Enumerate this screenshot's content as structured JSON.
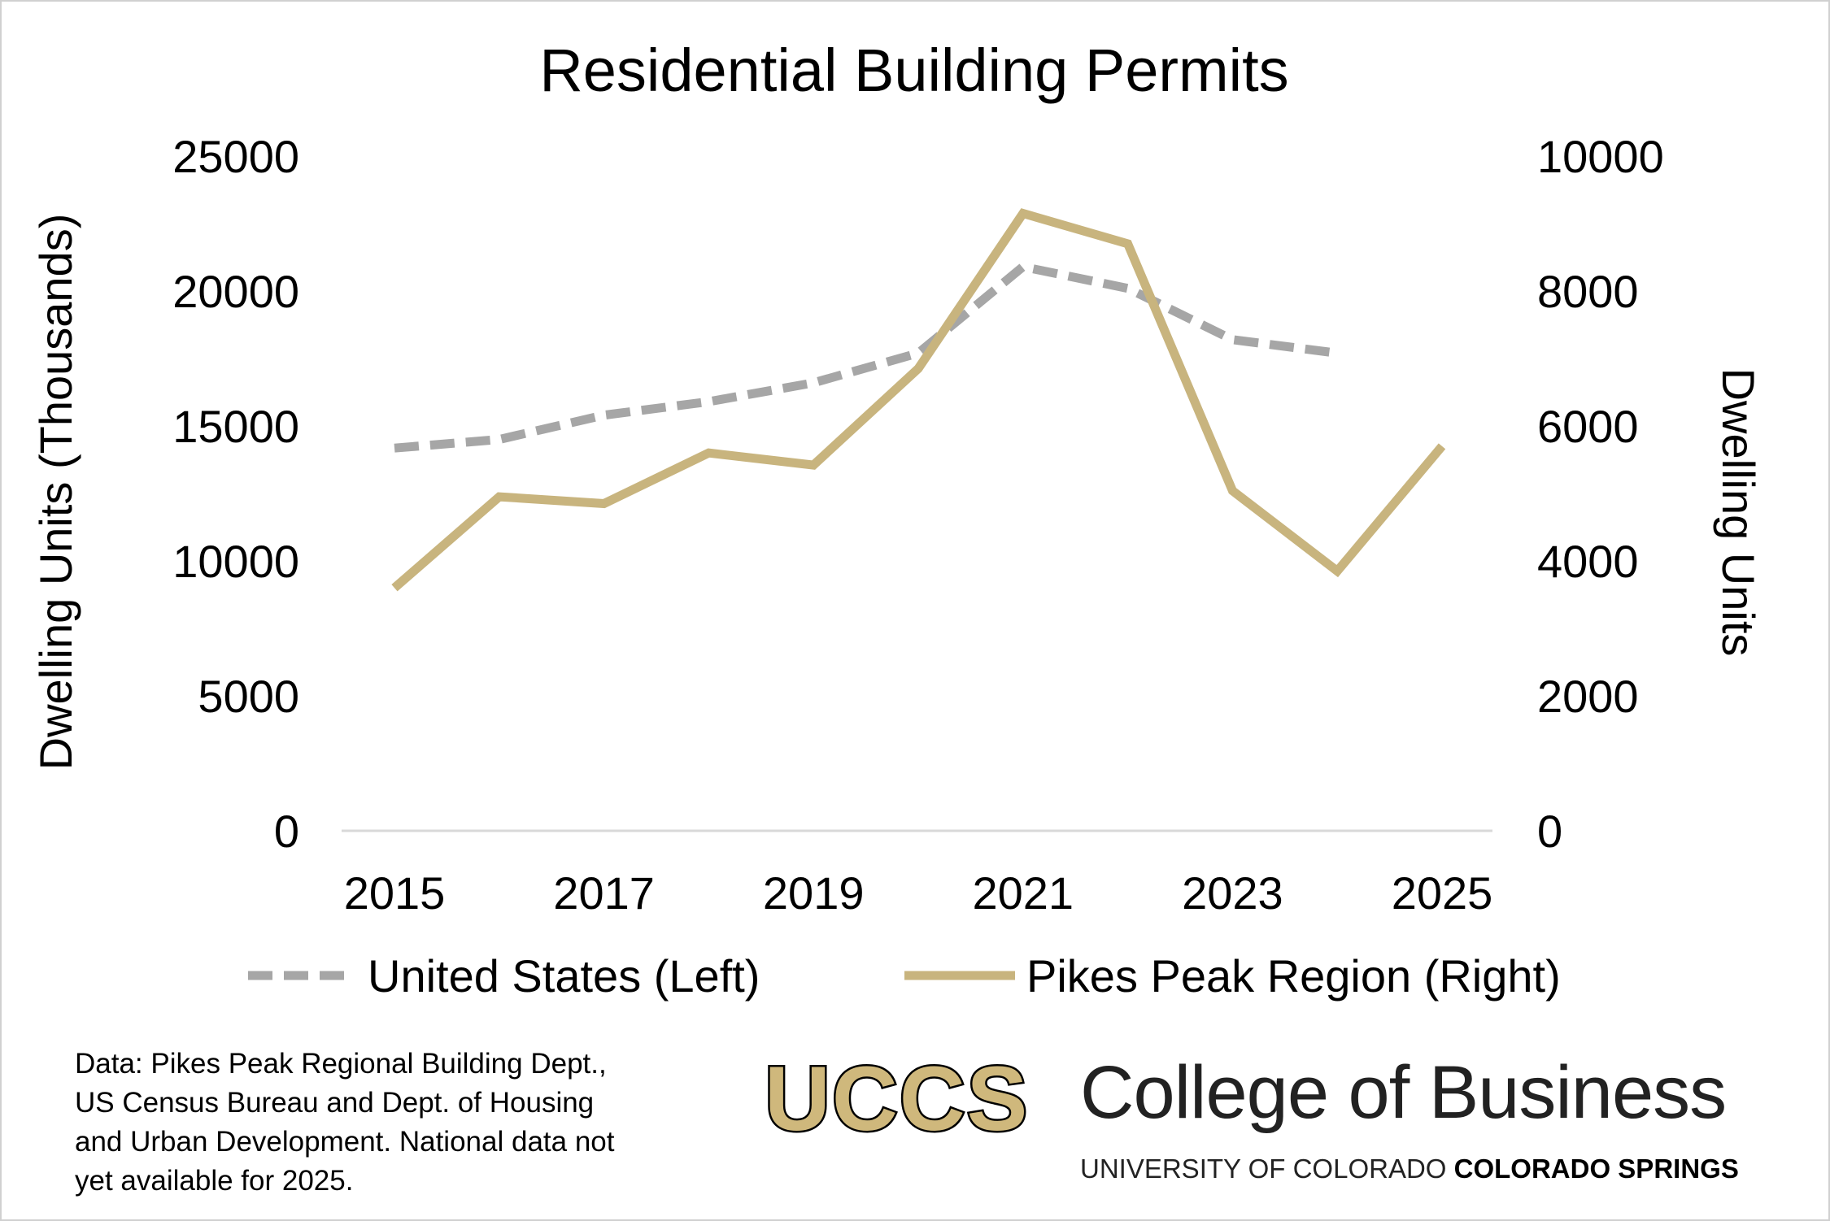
{
  "chart_data": {
    "type": "line",
    "title": "Residential Building Permits",
    "y_left_label": "Dwelling Units (Thousands)",
    "y_right_label": "Dwelling Units",
    "y_left_range": [
      0,
      25000
    ],
    "y_right_range": [
      0,
      10000
    ],
    "y_left_ticks": [
      "0",
      "5000",
      "10000",
      "15000",
      "20000",
      "25000"
    ],
    "y_right_ticks": [
      "0",
      "2000",
      "4000",
      "6000",
      "8000",
      "10000"
    ],
    "x_range": [
      2015,
      2025
    ],
    "x_ticks": [
      "2015",
      "2017",
      "2019",
      "2021",
      "2023",
      "2025"
    ],
    "grid": false,
    "legend_position": "bottom",
    "series": [
      {
        "name": "United States (Left)",
        "axis": "left",
        "color": "#a6a6a6",
        "style": "dashed",
        "x": [
          2015,
          2016,
          2017,
          2018,
          2019,
          2020,
          2021,
          2022,
          2023,
          2024
        ],
        "values": [
          14180,
          14500,
          15400,
          15900,
          16600,
          17700,
          20900,
          20100,
          18200,
          17700
        ]
      },
      {
        "name": "Pikes Peak Region (Right)",
        "axis": "right",
        "color": "#c8b47e",
        "style": "solid",
        "x": [
          2015,
          2016,
          2017,
          2018,
          2019,
          2020,
          2021,
          2022,
          2023,
          2024,
          2025
        ],
        "values": [
          3600,
          4950,
          4850,
          5600,
          5420,
          6850,
          9150,
          8700,
          5040,
          3850,
          5700
        ]
      }
    ]
  },
  "footer": {
    "source_lines": [
      "Data: Pikes Peak Regional Building Dept.,",
      "US Census Bureau and Dept. of Housing",
      "and Urban Development. National data not",
      "yet available for 2025."
    ],
    "logo_text": "UCCS",
    "college_name": "College of Business",
    "university_prefix": "UNIVERSITY OF COLORADO",
    "university_campus": "COLORADO SPRINGS"
  },
  "colors": {
    "us_series": "#a6a6a6",
    "pikes_series": "#c8b47e",
    "logo_gold": "#cfb87c"
  }
}
